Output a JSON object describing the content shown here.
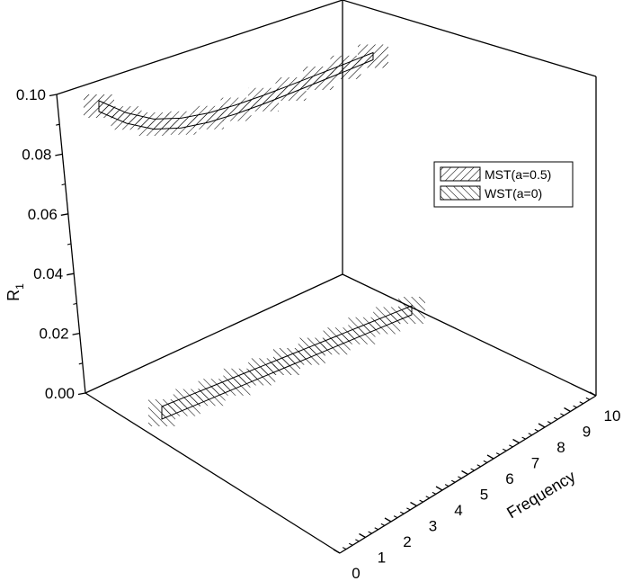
{
  "chart_data": {
    "type": "3d-ribbon",
    "title": "",
    "ylabel": "R",
    "ylabel_subscript": "1",
    "xlabel": "Frequency",
    "ylim": [
      0,
      0.1
    ],
    "xlim": [
      0,
      10
    ],
    "y_ticks": [
      "0.00",
      "0.02",
      "0.04",
      "0.06",
      "0.08",
      "0.10"
    ],
    "x_ticks": [
      "0",
      "1",
      "2",
      "3",
      "4",
      "5",
      "6",
      "7",
      "8",
      "9",
      "10"
    ],
    "legend_position": "right",
    "series": [
      {
        "name": "MST(a=0.5)",
        "pattern": "hatch-forward",
        "x": [
          0,
          1,
          2,
          3,
          4,
          5,
          6,
          7,
          8,
          9,
          10
        ],
        "values": [
          0.09,
          0.082,
          0.076,
          0.0725,
          0.0705,
          0.0695,
          0.069,
          0.0688,
          0.0687,
          0.0686,
          0.0686
        ]
      },
      {
        "name": "WST(a=0)",
        "pattern": "hatch-backward",
        "x": [
          0,
          1,
          2,
          3,
          4,
          5,
          6,
          7,
          8,
          9,
          10
        ],
        "values": [
          0,
          0,
          0,
          0,
          0,
          0,
          0,
          0,
          0,
          0,
          0
        ]
      }
    ]
  }
}
